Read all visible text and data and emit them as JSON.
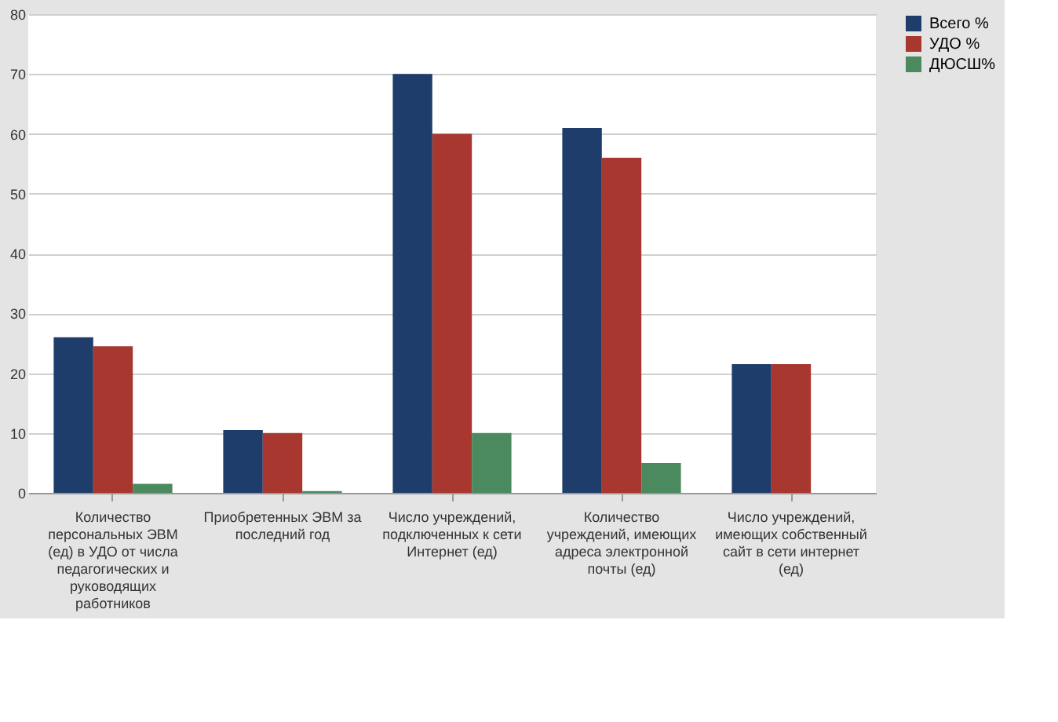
{
  "chart_data": {
    "type": "bar",
    "categories": [
      "Количество персональных ЭВМ (ед) в УДО от числа педагогических и руководящих работников",
      "Приобретенных ЭВМ за последний год",
      "Число учреждений, подключенных к сети Интернет (ед)",
      "Количество учреждений, имеющих адреса электронной почты (ед)",
      "Число учреждений, имеющих собственный сайт в сети интернет (ед)"
    ],
    "series": [
      {
        "name": "Всего %",
        "color": "#1f3d6b",
        "values": [
          26,
          10.5,
          70,
          61,
          21.5
        ]
      },
      {
        "name": "УДО %",
        "color": "#a8372f",
        "values": [
          24.5,
          10,
          60,
          56,
          21.5
        ]
      },
      {
        "name": "ДЮСШ%",
        "color": "#4a8a5e",
        "values": [
          1.5,
          0.3,
          10,
          5,
          0
        ]
      }
    ],
    "ylim": [
      0,
      80
    ],
    "yticks": [
      0,
      10,
      20,
      30,
      40,
      50,
      60,
      70,
      80
    ],
    "grid": "y",
    "legend": "right"
  }
}
